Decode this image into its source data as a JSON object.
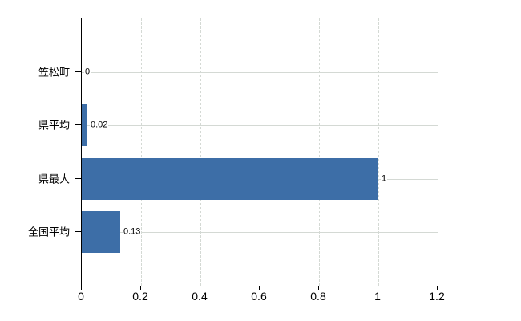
{
  "chart_data": {
    "type": "bar",
    "orientation": "horizontal",
    "title": "",
    "xlabel": "",
    "ylabel": "",
    "legend": false,
    "categories": [
      "笠松町",
      "県平均",
      "県最大",
      "全国平均"
    ],
    "values": [
      0,
      0.02,
      1,
      0.13
    ],
    "value_labels": [
      "0",
      "0.02",
      "1",
      "0.13"
    ],
    "x_ticks": [
      0,
      0.2,
      0.4,
      0.6,
      0.8,
      1,
      1.2
    ],
    "x_tick_labels": [
      "0",
      "0.2",
      "0.4",
      "0.6",
      "0.8",
      "1",
      "1.2"
    ],
    "xlim": [
      0,
      1.2
    ],
    "grid": {
      "vertical_lines": "dashed at each 0.2 step",
      "horizontal_lines": "solid at each category center",
      "plot_border_top_right": "dashed"
    },
    "colors": {
      "bar": "#3d6ea7",
      "grid": "#d4d9d4",
      "axis": "#000000",
      "text": "#000000",
      "background": "#ffffff"
    }
  }
}
